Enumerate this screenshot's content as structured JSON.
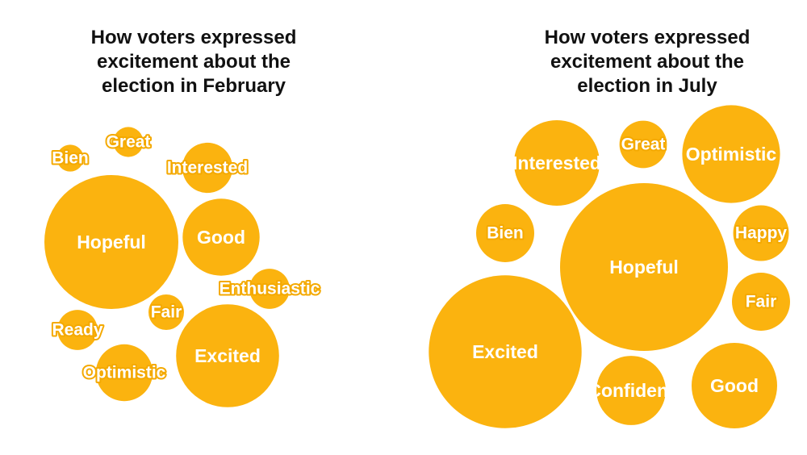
{
  "colors": {
    "bubble": "#fbb30f",
    "label": "#ffffff",
    "label_outline": "#f4a900",
    "title": "#111111"
  },
  "chart_data": [
    {
      "type": "bubble",
      "title": "How voters expressed excitement about the election in February",
      "title_lines": [
        "How voters expressed",
        "excitement about the",
        "election in February"
      ],
      "bubbles": [
        {
          "label": "Hopeful",
          "relative_size": 1.0
        },
        {
          "label": "Excited",
          "relative_size": 0.59
        },
        {
          "label": "Good",
          "relative_size": 0.33
        },
        {
          "label": "Interested",
          "relative_size": 0.14
        },
        {
          "label": "Optimistic",
          "relative_size": 0.18
        },
        {
          "label": "Enthusiastic",
          "relative_size": 0.09
        },
        {
          "label": "Fair",
          "relative_size": 0.07
        },
        {
          "label": "Ready",
          "relative_size": 0.09
        },
        {
          "label": "Great",
          "relative_size": 0.05
        },
        {
          "label": "Bien",
          "relative_size": 0.04
        }
      ]
    },
    {
      "type": "bubble",
      "title": "How voters expressed excitement about the election in July",
      "title_lines": [
        "How voters expressed",
        "excitement about the",
        "election in July"
      ],
      "bubbles": [
        {
          "label": "Hopeful",
          "relative_size": 1.0
        },
        {
          "label": "Excited",
          "relative_size": 0.83
        },
        {
          "label": "Optimistic",
          "relative_size": 0.34
        },
        {
          "label": "Interested",
          "relative_size": 0.26
        },
        {
          "label": "Good",
          "relative_size": 0.26
        },
        {
          "label": "Happy",
          "relative_size": 0.11
        },
        {
          "label": "Bien",
          "relative_size": 0.12
        },
        {
          "label": "Fair",
          "relative_size": 0.12
        },
        {
          "label": "Confident",
          "relative_size": 0.17
        },
        {
          "label": "Great",
          "relative_size": 0.08
        }
      ]
    }
  ]
}
